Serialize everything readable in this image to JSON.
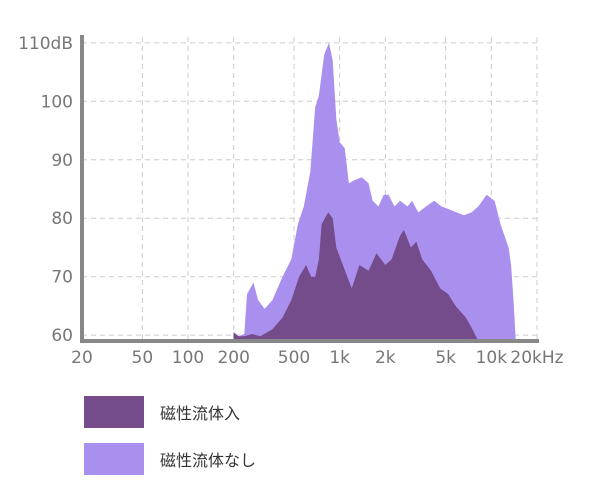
{
  "chart_data": {
    "type": "area",
    "title": "",
    "xlabel": "",
    "ylabel": "",
    "x_scale": "log",
    "x_ticks": [
      {
        "value": 20,
        "label": "20"
      },
      {
        "value": 50,
        "label": "50"
      },
      {
        "value": 100,
        "label": "100"
      },
      {
        "value": 200,
        "label": "200"
      },
      {
        "value": 500,
        "label": "500"
      },
      {
        "value": 1000,
        "label": "1k"
      },
      {
        "value": 2000,
        "label": "2k"
      },
      {
        "value": 5000,
        "label": "5k"
      },
      {
        "value": 10000,
        "label": "10k"
      },
      {
        "value": 20000,
        "label": "20kHz"
      }
    ],
    "y_ticks": [
      {
        "value": 60,
        "label": "60"
      },
      {
        "value": 70,
        "label": "70"
      },
      {
        "value": 80,
        "label": "80"
      },
      {
        "value": 90,
        "label": "90"
      },
      {
        "value": 100,
        "label": "100"
      },
      {
        "value": 110,
        "label": "110dB"
      }
    ],
    "xlim": [
      20,
      20000
    ],
    "ylim": [
      59,
      111
    ],
    "grid": true,
    "legend_position": "bottom-left",
    "series": [
      {
        "name": "磁性流体なし",
        "color": "#aa90ee",
        "points": [
          [
            200,
            60.5
          ],
          [
            215,
            59.8
          ],
          [
            235,
            60.2
          ],
          [
            245,
            67
          ],
          [
            270,
            69
          ],
          [
            290,
            66
          ],
          [
            320,
            64.5
          ],
          [
            360,
            66
          ],
          [
            420,
            70
          ],
          [
            480,
            73
          ],
          [
            530,
            79
          ],
          [
            580,
            82
          ],
          [
            640,
            88
          ],
          [
            690,
            99
          ],
          [
            730,
            101
          ],
          [
            790,
            108
          ],
          [
            850,
            110
          ],
          [
            900,
            107
          ],
          [
            950,
            97
          ],
          [
            1000,
            93
          ],
          [
            1080,
            92
          ],
          [
            1150,
            86
          ],
          [
            1250,
            86.5
          ],
          [
            1400,
            87
          ],
          [
            1550,
            86
          ],
          [
            1650,
            83
          ],
          [
            1800,
            82
          ],
          [
            1950,
            84
          ],
          [
            2100,
            84
          ],
          [
            2300,
            82
          ],
          [
            2500,
            83
          ],
          [
            2800,
            82
          ],
          [
            3000,
            83
          ],
          [
            3300,
            81
          ],
          [
            3700,
            82
          ],
          [
            4200,
            83
          ],
          [
            4700,
            82
          ],
          [
            5300,
            81.5
          ],
          [
            5900,
            81
          ],
          [
            6600,
            80.5
          ],
          [
            7400,
            81
          ],
          [
            8200,
            82
          ],
          [
            9300,
            84
          ],
          [
            10500,
            83
          ],
          [
            11500,
            79
          ],
          [
            13000,
            75
          ],
          [
            13500,
            72
          ],
          [
            14000,
            66
          ],
          [
            14500,
            59
          ]
        ]
      },
      {
        "name": "磁性流体入",
        "color": "#744b8b",
        "points": [
          [
            200,
            60.5
          ],
          [
            215,
            59.8
          ],
          [
            235,
            59.8
          ],
          [
            265,
            60.2
          ],
          [
            300,
            59.8
          ],
          [
            360,
            61
          ],
          [
            420,
            63
          ],
          [
            480,
            66
          ],
          [
            540,
            70
          ],
          [
            600,
            72
          ],
          [
            650,
            70
          ],
          [
            690,
            70
          ],
          [
            730,
            73
          ],
          [
            760,
            79
          ],
          [
            840,
            81
          ],
          [
            900,
            80
          ],
          [
            950,
            75
          ],
          [
            1050,
            72
          ],
          [
            1200,
            68
          ],
          [
            1350,
            72
          ],
          [
            1550,
            71
          ],
          [
            1750,
            74
          ],
          [
            2000,
            72
          ],
          [
            2200,
            73
          ],
          [
            2500,
            77
          ],
          [
            2650,
            78
          ],
          [
            2950,
            75
          ],
          [
            3200,
            76
          ],
          [
            3500,
            73
          ],
          [
            4000,
            71
          ],
          [
            4600,
            68
          ],
          [
            5200,
            67
          ],
          [
            5800,
            65
          ],
          [
            6800,
            63
          ],
          [
            7500,
            61
          ],
          [
            8200,
            59
          ]
        ]
      }
    ]
  },
  "legend": {
    "items": [
      {
        "label": "磁性流体入",
        "color": "#744b8b"
      },
      {
        "label": "磁性流体なし",
        "color": "#aa90ee"
      }
    ]
  }
}
